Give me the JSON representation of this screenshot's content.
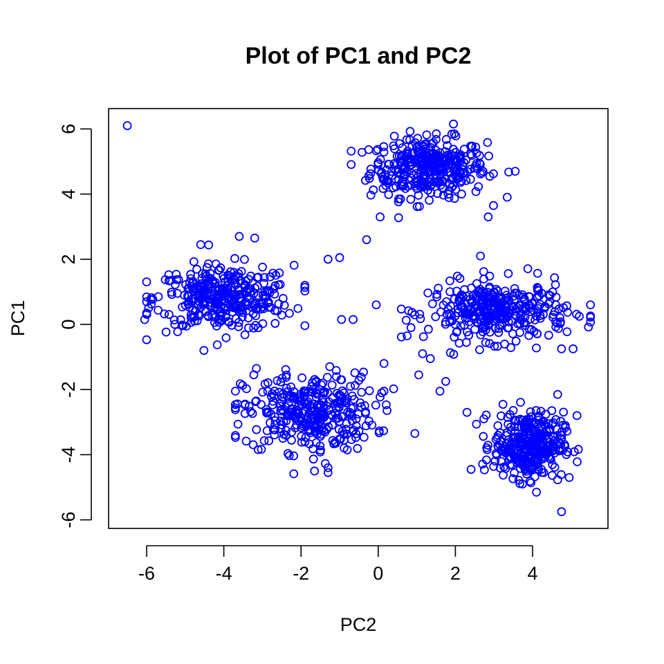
{
  "chart_data": {
    "type": "scatter",
    "title": "Plot of PC1 and PC2",
    "xlabel": "PC2",
    "ylabel": "PC1",
    "xlim": [
      -7,
      6
    ],
    "ylim": [
      -6.5,
      6.5
    ],
    "x_ticks": [
      -6,
      -4,
      -2,
      0,
      2,
      4
    ],
    "y_ticks": [
      -6,
      -4,
      -2,
      0,
      2,
      4,
      6
    ],
    "x_tick_labels": [
      "-6",
      "-4",
      "-2",
      "0",
      "2",
      "4"
    ],
    "y_tick_labels": [
      "-6",
      "-4",
      "-2",
      "0",
      "2",
      "4",
      "6"
    ],
    "marker": "open-circle",
    "color": "#0000FF",
    "grid": false,
    "legend": "none",
    "clusters": [
      {
        "center": [
          1.3,
          4.8
        ],
        "spread": [
          0.75,
          0.45
        ],
        "approx_x_range": [
          -0.7,
          3.5
        ],
        "approx_y_range": [
          2.6,
          6.2
        ]
      },
      {
        "center": [
          -4.0,
          0.8
        ],
        "spread": [
          0.9,
          0.5
        ],
        "approx_x_range": [
          -6.0,
          -1.9
        ],
        "approx_y_range": [
          -0.8,
          2.7
        ]
      },
      {
        "center": [
          -1.8,
          -2.7
        ],
        "spread": [
          0.85,
          0.6
        ],
        "approx_x_range": [
          -3.7,
          0.4
        ],
        "approx_y_range": [
          -4.6,
          1.0
        ]
      },
      {
        "center": [
          3.1,
          0.4
        ],
        "spread": [
          0.9,
          0.45
        ],
        "approx_x_range": [
          0.6,
          5.5
        ],
        "approx_y_range": [
          -2.1,
          2.1
        ]
      },
      {
        "center": [
          3.9,
          -3.7
        ],
        "spread": [
          0.45,
          0.5
        ],
        "approx_x_range": [
          2.3,
          5.3
        ],
        "approx_y_range": [
          -5.8,
          -2.1
        ]
      }
    ],
    "points": [
      {
        "x": -6.5,
        "y": 6.1
      },
      {
        "x": 1.95,
        "y": 6.15
      },
      {
        "x": 5.5,
        "y": 0.6
      },
      {
        "x": 4.75,
        "y": -5.75
      },
      {
        "x": 0.95,
        "y": -3.35
      },
      {
        "x": -0.05,
        "y": 0.6
      },
      {
        "x": -0.3,
        "y": 2.6
      },
      {
        "x": -0.65,
        "y": 0.15
      },
      {
        "x": 0.75,
        "y": -0.35
      },
      {
        "x": 0.85,
        "y": -0.1
      },
      {
        "x": 0.15,
        "y": -1.2
      },
      {
        "x": 0.15,
        "y": -2.05
      },
      {
        "x": -0.95,
        "y": 0.15
      },
      {
        "x": -1.0,
        "y": 2.05
      },
      {
        "x": -1.3,
        "y": 2.0
      },
      {
        "x": -3.6,
        "y": 2.7
      },
      {
        "x": -3.2,
        "y": 2.65
      },
      {
        "x": -4.6,
        "y": 2.45
      },
      {
        "x": -1.3,
        "y": -4.55
      },
      {
        "x": -1.3,
        "y": -4.4
      },
      {
        "x": -1.65,
        "y": -4.5
      },
      {
        "x": 4.95,
        "y": -4.7
      },
      {
        "x": 4.1,
        "y": -5.15
      },
      {
        "x": 2.65,
        "y": 2.1
      },
      {
        "x": 3.55,
        "y": 4.7
      },
      {
        "x": 2.85,
        "y": 3.3
      },
      {
        "x": 0.05,
        "y": 3.3
      },
      {
        "x": 0.55,
        "y": 5.55
      },
      {
        "x": -6.05,
        "y": 0.15
      },
      {
        "x": -5.95,
        "y": 0.5
      },
      {
        "x": 1.15,
        "y": -0.9
      },
      {
        "x": 1.35,
        "y": -1.05
      },
      {
        "x": 1.05,
        "y": -1.55
      },
      {
        "x": 1.6,
        "y": -2.05
      },
      {
        "x": 1.75,
        "y": -1.75
      },
      {
        "x": 2.3,
        "y": -2.7
      },
      {
        "x": 4.65,
        "y": -2.15
      },
      {
        "x": 4.75,
        "y": -0.75
      },
      {
        "x": 5.05,
        "y": -0.75
      },
      {
        "x": 5.15,
        "y": -2.8
      }
    ]
  }
}
